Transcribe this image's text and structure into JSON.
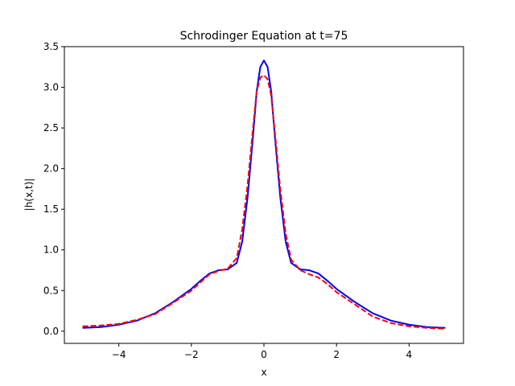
{
  "chart_data": {
    "type": "line",
    "title": "Schrodinger Equation at t=75",
    "xlabel": "x",
    "ylabel": "|h(x,t)|",
    "xlim": [
      -5.5,
      5.5
    ],
    "ylim": [
      -0.15,
      3.5
    ],
    "xticks": [
      -4,
      -2,
      0,
      2,
      4
    ],
    "yticks": [
      0.0,
      0.5,
      1.0,
      1.5,
      2.0,
      2.5,
      3.0,
      3.5
    ],
    "xtick_labels": [
      "−4",
      "−2",
      "0",
      "2",
      "4"
    ],
    "ytick_labels": [
      "0.0",
      "0.5",
      "1.0",
      "1.5",
      "2.0",
      "2.5",
      "3.0",
      "3.5"
    ],
    "grid": false,
    "x": [
      -5.0,
      -4.5,
      -4.0,
      -3.5,
      -3.0,
      -2.5,
      -2.0,
      -1.75,
      -1.5,
      -1.25,
      -1.0,
      -0.75,
      -0.6,
      -0.45,
      -0.3,
      -0.2,
      -0.1,
      0.0,
      0.1,
      0.2,
      0.3,
      0.45,
      0.6,
      0.75,
      1.0,
      1.25,
      1.5,
      1.75,
      2.0,
      2.5,
      3.0,
      3.5,
      4.0,
      4.5,
      5.0
    ],
    "series": [
      {
        "color": "#0000ff",
        "dash": "solid",
        "values": [
          0.04,
          0.05,
          0.08,
          0.13,
          0.22,
          0.36,
          0.52,
          0.62,
          0.71,
          0.75,
          0.76,
          0.84,
          1.1,
          1.65,
          2.4,
          2.95,
          3.25,
          3.33,
          3.25,
          2.95,
          2.4,
          1.65,
          1.1,
          0.84,
          0.76,
          0.75,
          0.71,
          0.62,
          0.52,
          0.36,
          0.22,
          0.13,
          0.08,
          0.05,
          0.04
        ]
      },
      {
        "color": "#ff0000",
        "dash": "dashed",
        "values": [
          0.06,
          0.07,
          0.09,
          0.14,
          0.21,
          0.35,
          0.5,
          0.6,
          0.7,
          0.74,
          0.77,
          0.9,
          1.25,
          1.8,
          2.5,
          2.95,
          3.12,
          3.15,
          3.1,
          2.9,
          2.45,
          1.75,
          1.2,
          0.88,
          0.75,
          0.7,
          0.66,
          0.58,
          0.48,
          0.33,
          0.18,
          0.1,
          0.06,
          0.04,
          0.03
        ]
      }
    ]
  }
}
